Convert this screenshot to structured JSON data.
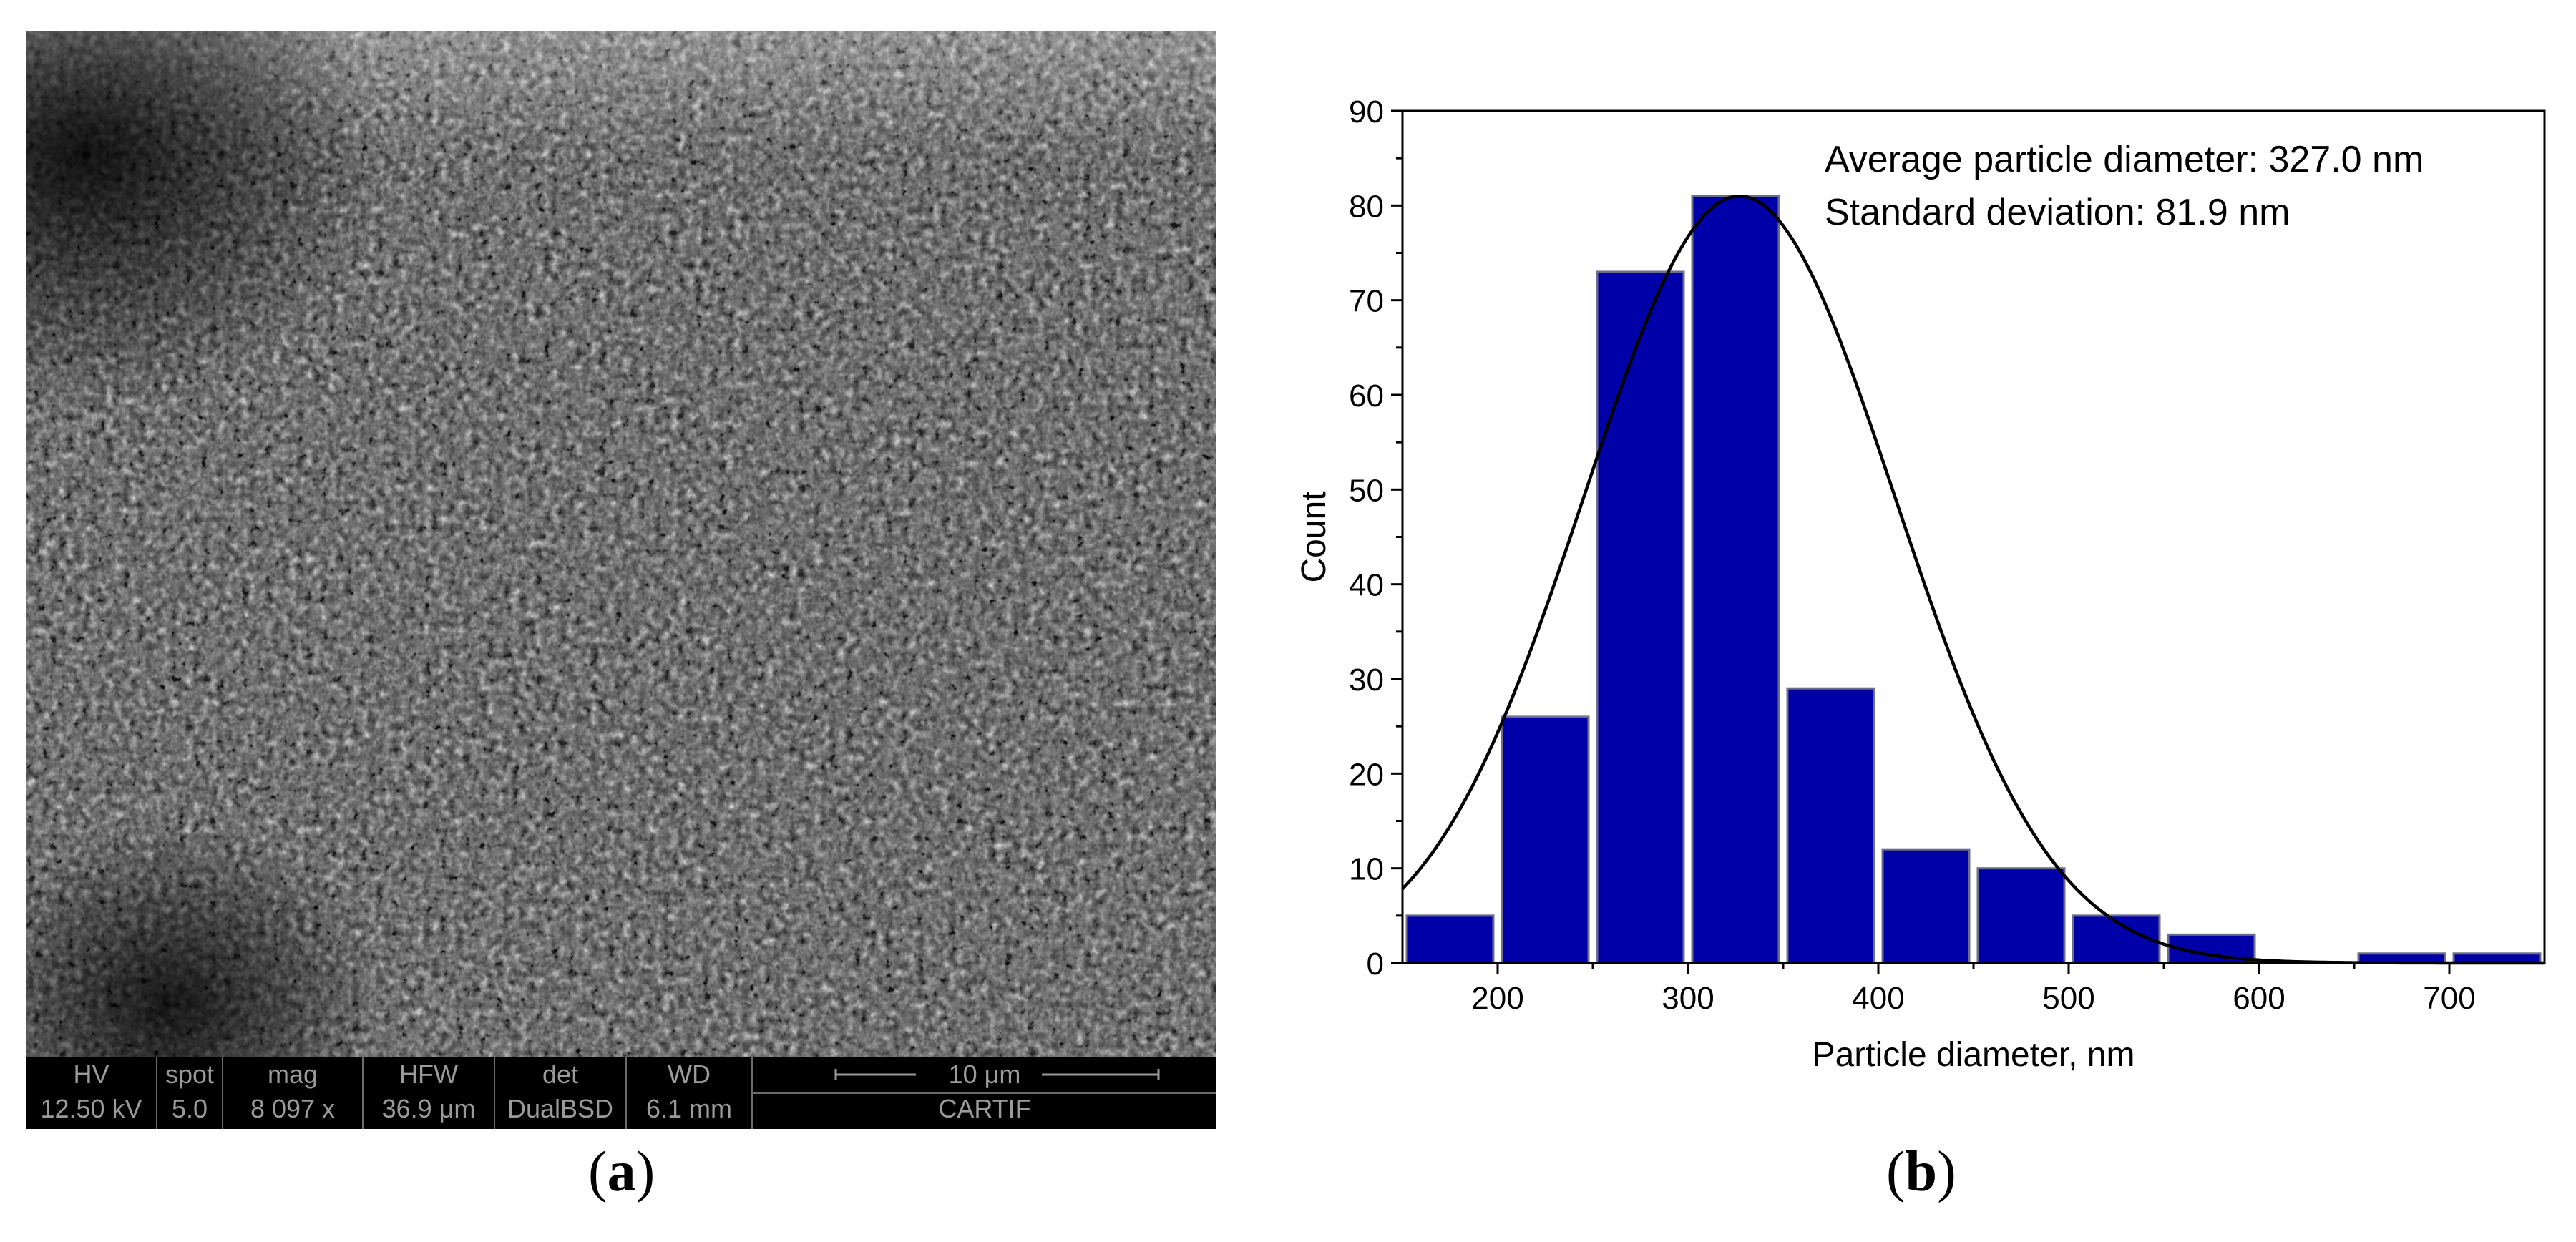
{
  "panels": {
    "a": {
      "label": "(a)",
      "label_prefix": "(",
      "label_letter": "a",
      "label_suffix": ")"
    },
    "b": {
      "label": "(b)",
      "label_prefix": "(",
      "label_letter": "b",
      "label_suffix": ")"
    }
  },
  "sem": {
    "headers": {
      "hv": "HV",
      "spot": "spot",
      "mag": "mag",
      "hfw": "HFW",
      "det": "det",
      "wd": "WD"
    },
    "values": {
      "hv": "12.50 kV",
      "spot": "5.0",
      "mag": "8 097 x",
      "hfw": "36.9 μm",
      "det": "DualBSD",
      "wd": "6.1 mm"
    },
    "scalebar_label": "10 μm",
    "institution": "CARTIF"
  },
  "chart_data": {
    "type": "bar",
    "title": "",
    "xlabel": "Particle diameter, nm",
    "ylabel": "Count",
    "xlim": [
      150,
      750
    ],
    "ylim": [
      0,
      90
    ],
    "x_ticks": [
      200,
      300,
      400,
      500,
      600,
      700
    ],
    "y_ticks": [
      0,
      10,
      20,
      30,
      40,
      50,
      60,
      70,
      80,
      90
    ],
    "bin_width": 50,
    "bins": [
      {
        "start": 150,
        "end": 200,
        "count": 5
      },
      {
        "start": 200,
        "end": 250,
        "count": 26
      },
      {
        "start": 250,
        "end": 300,
        "count": 73
      },
      {
        "start": 300,
        "end": 350,
        "count": 81
      },
      {
        "start": 350,
        "end": 400,
        "count": 29
      },
      {
        "start": 400,
        "end": 450,
        "count": 12
      },
      {
        "start": 450,
        "end": 500,
        "count": 10
      },
      {
        "start": 500,
        "end": 550,
        "count": 5
      },
      {
        "start": 550,
        "end": 600,
        "count": 3
      },
      {
        "start": 600,
        "end": 650,
        "count": 0
      },
      {
        "start": 650,
        "end": 700,
        "count": 1
      },
      {
        "start": 700,
        "end": 750,
        "count": 1
      }
    ],
    "fit_curve": {
      "type": "normal",
      "mean": 327.0,
      "sd": 81.9,
      "peak": 81
    },
    "annotations": [
      "Average particle diameter: 327.0 nm",
      "Standard deviation: 81.9 nm"
    ],
    "grid": false,
    "colors": {
      "bar_fill": "#0000a8",
      "bar_edge": "#6e6e8a",
      "curve": "#000000"
    }
  }
}
